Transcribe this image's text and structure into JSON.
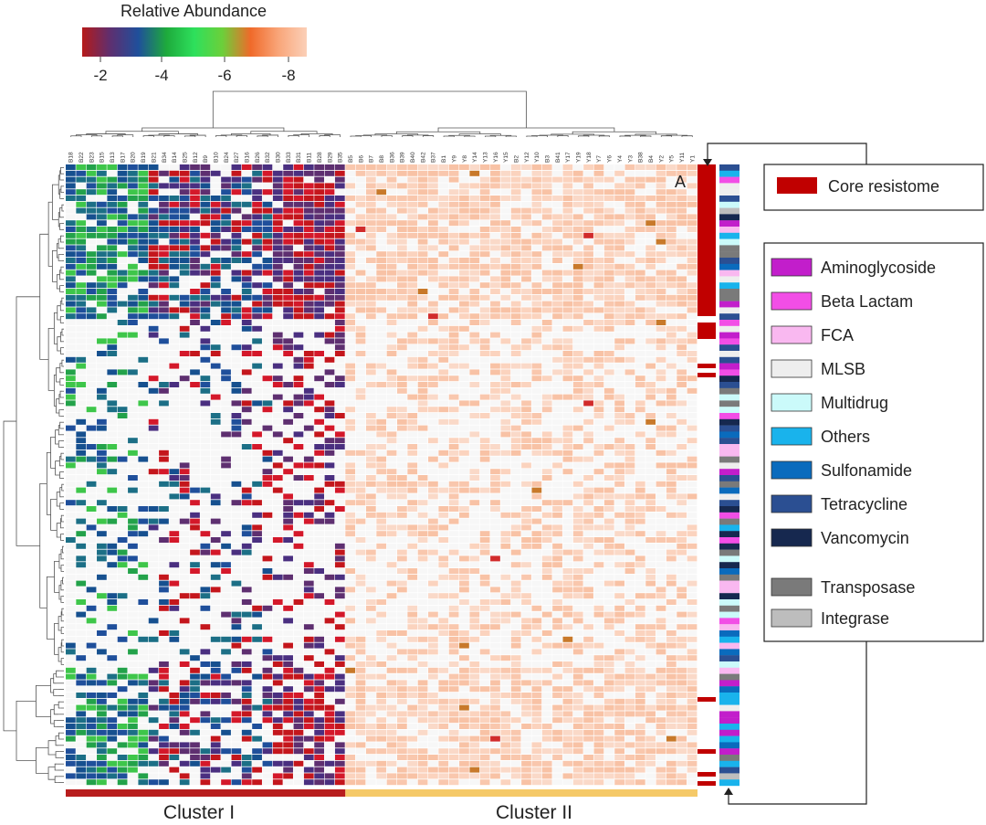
{
  "chart_data": {
    "type": "heatmap",
    "title": "",
    "colorbar": {
      "title": "Relative Abundance",
      "ticks": [
        "-2",
        "-4",
        "-6",
        "-8"
      ],
      "stops": [
        "#b51a1a",
        "#5e2f70",
        "#1f4f9b",
        "#1eaa3c",
        "#2ee05c",
        "#6ccf3a",
        "#f06a2a",
        "#f9a67a",
        "#fbd0b8"
      ]
    },
    "columns": [
      "B18",
      "B22",
      "B23",
      "B15",
      "B13",
      "B17",
      "B20",
      "B19",
      "B21",
      "B34",
      "B14",
      "B25",
      "B12",
      "B9",
      "B10",
      "B24",
      "B27",
      "B16",
      "B26",
      "B32",
      "B30",
      "B33",
      "B31",
      "B11",
      "B28",
      "B29",
      "B35",
      "B5",
      "B6",
      "B7",
      "B8",
      "B36",
      "B39",
      "B40",
      "B42",
      "B37",
      "B1",
      "Y9",
      "Y8",
      "Y14",
      "Y13",
      "Y16",
      "Y15",
      "B2",
      "Y12",
      "Y10",
      "B3",
      "B41",
      "Y17",
      "Y19",
      "Y18",
      "Y7",
      "Y6",
      "Y4",
      "Y3",
      "B38",
      "B4",
      "Y2",
      "Y5",
      "Y11",
      "Y1"
    ],
    "n_rows": 100,
    "clusters": [
      {
        "label": "Cluster I",
        "color": "#b81d1d"
      },
      {
        "label": "Cluster II",
        "color": "#f5c968"
      }
    ],
    "annotation_label": "A",
    "legend": {
      "core": {
        "label": "Core resistome",
        "color": "#c00000"
      },
      "classes": [
        {
          "label": "Aminoglycoside",
          "color": "#c21ecb"
        },
        {
          "label": "Beta Lactam",
          "color": "#f24ee6"
        },
        {
          "label": "FCA",
          "color": "#f9b8f0"
        },
        {
          "label": "MLSB",
          "color": "#eeeeee"
        },
        {
          "label": "Multidrug",
          "color": "#cbfafa"
        },
        {
          "label": "Others",
          "color": "#19b3ec"
        },
        {
          "label": "Sulfonamide",
          "color": "#0a6bbd"
        },
        {
          "label": "Tetracycline",
          "color": "#2b4f92"
        },
        {
          "label": "Vancomycin",
          "color": "#16284f"
        }
      ],
      "mobile": [
        {
          "label": "Transposase",
          "color": "#7a7a7a"
        },
        {
          "label": "Integrase",
          "color": "#bdbdbd"
        }
      ]
    }
  }
}
